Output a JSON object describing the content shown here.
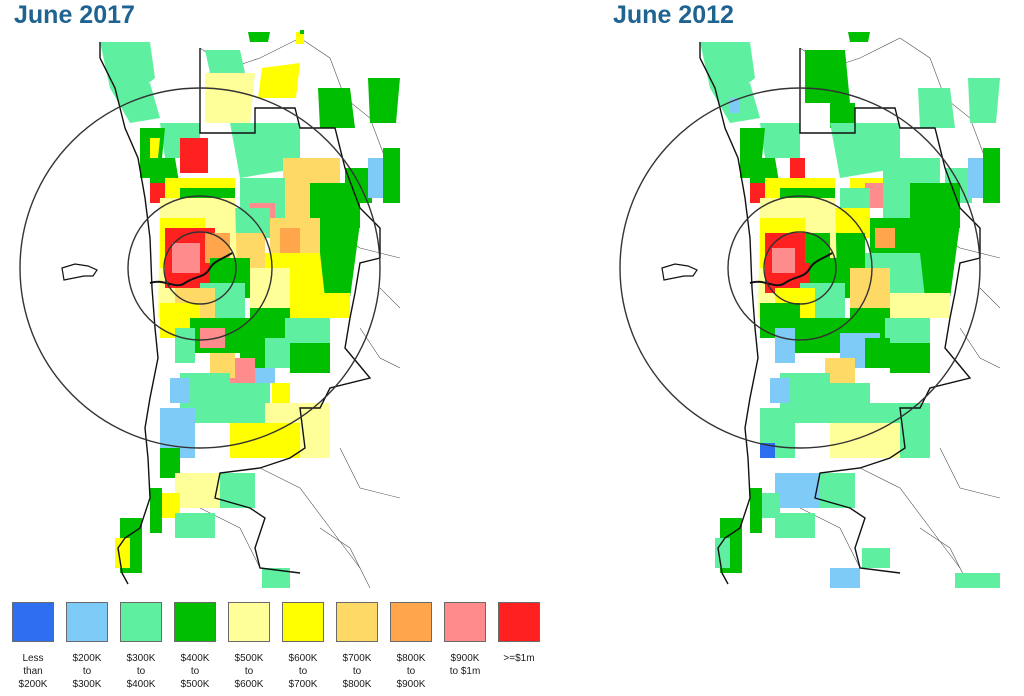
{
  "maps": [
    {
      "title": "June 2017"
    },
    {
      "title": "June 2012"
    }
  ],
  "colors": {
    "lt_200k": "#2e6ff2",
    "k200_300": "#7fcbf7",
    "k300_400": "#5ef0a0",
    "k400_500": "#00bf00",
    "k500_600": "#ffff99",
    "k600_700": "#ffff00",
    "k700_800": "#ffd966",
    "k800_900": "#ffa64d",
    "k900_1m": "#ff8c8c",
    "ge_1m": "#ff2020",
    "rings": "#333333",
    "boundary": "#111111",
    "title": "#1f6391"
  },
  "legend": [
    {
      "label": "Less\nthan\n$200K",
      "color": "#2e6ff2"
    },
    {
      "label": "$200K\nto\n$300K",
      "color": "#7fcbf7"
    },
    {
      "label": "$300K\nto\n$400K",
      "color": "#5ef0a0"
    },
    {
      "label": "$400K\nto\n$500K",
      "color": "#00bf00"
    },
    {
      "label": "$500K\nto\n$600K",
      "color": "#ffff99"
    },
    {
      "label": "$600K\nto\n$700K",
      "color": "#ffff00"
    },
    {
      "label": "$700K\nto\n$800K",
      "color": "#ffd966"
    },
    {
      "label": "$800K\nto\n$900K",
      "color": "#ffa64d"
    },
    {
      "label": "$900K\nto $1m",
      "color": "#ff8c8c"
    },
    {
      "label": ">=$1m",
      "color": "#ff2020"
    }
  ]
}
